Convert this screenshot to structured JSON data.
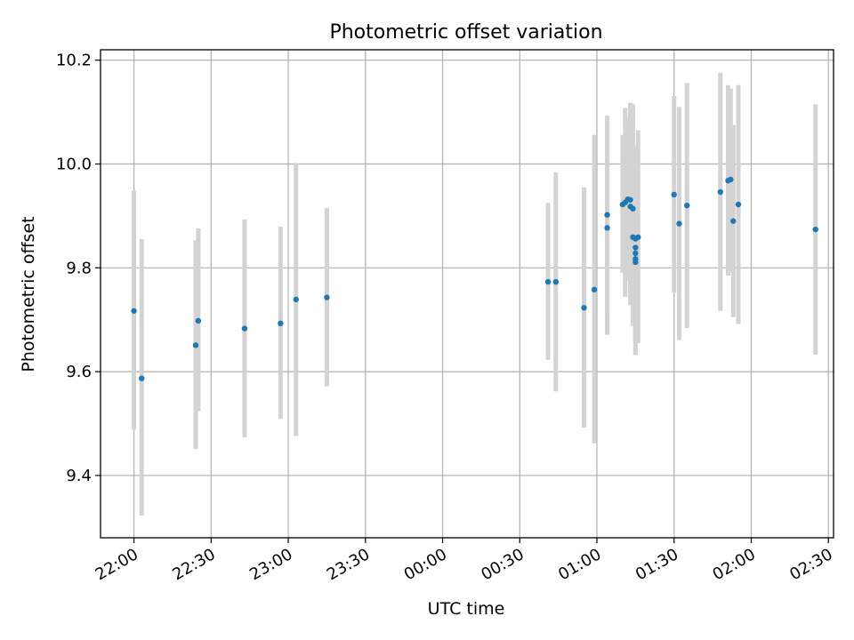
{
  "chart_data": {
    "type": "scatter",
    "title": "Photometric offset variation",
    "xlabel": "UTC time",
    "ylabel": "Photometric offset",
    "x_axis_kind": "time",
    "xlim": [
      "21:47",
      "02:32"
    ],
    "ylim": [
      9.28,
      10.22
    ],
    "xticks": [
      "22:00",
      "22:30",
      "23:00",
      "23:30",
      "00:00",
      "00:30",
      "01:00",
      "01:30",
      "02:00",
      "02:30"
    ],
    "yticks": [
      "9.4",
      "9.6",
      "9.8",
      "10.0",
      "10.2"
    ],
    "grid": true,
    "colors": {
      "marker": "#1f77b4",
      "errorbar": "#d3d3d3",
      "grid": "#b0b0b0",
      "axes": "#000000"
    },
    "points": [
      {
        "x": "22:00",
        "y": 9.717,
        "yerr_low": 9.488,
        "yerr_high": 9.948
      },
      {
        "x": "22:03",
        "y": 9.587,
        "yerr_low": 9.323,
        "yerr_high": 9.855
      },
      {
        "x": "22:24",
        "y": 9.651,
        "yerr_low": 9.451,
        "yerr_high": 9.853
      },
      {
        "x": "22:25",
        "y": 9.698,
        "yerr_low": 9.524,
        "yerr_high": 9.876
      },
      {
        "x": "22:43",
        "y": 9.683,
        "yerr_low": 9.473,
        "yerr_high": 9.893
      },
      {
        "x": "22:57",
        "y": 9.693,
        "yerr_low": 9.509,
        "yerr_high": 9.879
      },
      {
        "x": "23:03",
        "y": 9.739,
        "yerr_low": 9.476,
        "yerr_high": 10.002
      },
      {
        "x": "23:15",
        "y": 9.743,
        "yerr_low": 9.572,
        "yerr_high": 9.915
      },
      {
        "x": "00:41",
        "y": 9.773,
        "yerr_low": 9.623,
        "yerr_high": 9.925
      },
      {
        "x": "00:44",
        "y": 9.773,
        "yerr_low": 9.562,
        "yerr_high": 9.984
      },
      {
        "x": "00:55",
        "y": 9.723,
        "yerr_low": 9.492,
        "yerr_high": 9.955
      },
      {
        "x": "00:59",
        "y": 9.758,
        "yerr_low": 9.462,
        "yerr_high": 10.056
      },
      {
        "x": "01:04",
        "y": 9.877,
        "yerr_low": 9.671,
        "yerr_high": 10.085
      },
      {
        "x": "01:04",
        "y": 9.902,
        "yerr_low": 9.712,
        "yerr_high": 10.093
      },
      {
        "x": "01:10",
        "y": 9.922,
        "yerr_low": 9.79,
        "yerr_high": 10.056
      },
      {
        "x": "01:11",
        "y": 9.926,
        "yerr_low": 9.744,
        "yerr_high": 10.108
      },
      {
        "x": "01:12",
        "y": 9.932,
        "yerr_low": 9.775,
        "yerr_high": 10.09
      },
      {
        "x": "01:13",
        "y": 9.931,
        "yerr_low": 9.742,
        "yerr_high": 10.118
      },
      {
        "x": "01:13",
        "y": 9.918,
        "yerr_low": 9.728,
        "yerr_high": 10.108
      },
      {
        "x": "01:14",
        "y": 9.914,
        "yerr_low": 9.713,
        "yerr_high": 10.115
      },
      {
        "x": "01:14",
        "y": 9.859,
        "yerr_low": 9.688,
        "yerr_high": 10.03
      },
      {
        "x": "01:15",
        "y": 9.856,
        "yerr_low": 9.677,
        "yerr_high": 10.034
      },
      {
        "x": "01:15",
        "y": 9.839,
        "yerr_low": 9.648,
        "yerr_high": 10.03
      },
      {
        "x": "01:15",
        "y": 9.828,
        "yerr_low": 9.632,
        "yerr_high": 10.024
      },
      {
        "x": "01:15",
        "y": 9.817,
        "yerr_low": 9.638,
        "yerr_high": 9.996
      },
      {
        "x": "01:15",
        "y": 9.811,
        "yerr_low": 9.655,
        "yerr_high": 9.97
      },
      {
        "x": "01:16",
        "y": 9.859,
        "yerr_low": 9.655,
        "yerr_high": 10.065
      },
      {
        "x": "01:30",
        "y": 9.941,
        "yerr_low": 9.752,
        "yerr_high": 10.131
      },
      {
        "x": "01:32",
        "y": 9.885,
        "yerr_low": 9.661,
        "yerr_high": 10.11
      },
      {
        "x": "01:35",
        "y": 9.92,
        "yerr_low": 9.684,
        "yerr_high": 10.156
      },
      {
        "x": "01:48",
        "y": 9.946,
        "yerr_low": 9.717,
        "yerr_high": 10.176
      },
      {
        "x": "01:51",
        "y": 9.968,
        "yerr_low": 9.785,
        "yerr_high": 10.152
      },
      {
        "x": "01:52",
        "y": 9.97,
        "yerr_low": 9.792,
        "yerr_high": 10.145
      },
      {
        "x": "01:53",
        "y": 9.89,
        "yerr_low": 9.705,
        "yerr_high": 10.075
      },
      {
        "x": "01:55",
        "y": 9.922,
        "yerr_low": 9.692,
        "yerr_high": 10.152
      },
      {
        "x": "02:25",
        "y": 9.874,
        "yerr_low": 9.633,
        "yerr_high": 10.115
      }
    ]
  }
}
